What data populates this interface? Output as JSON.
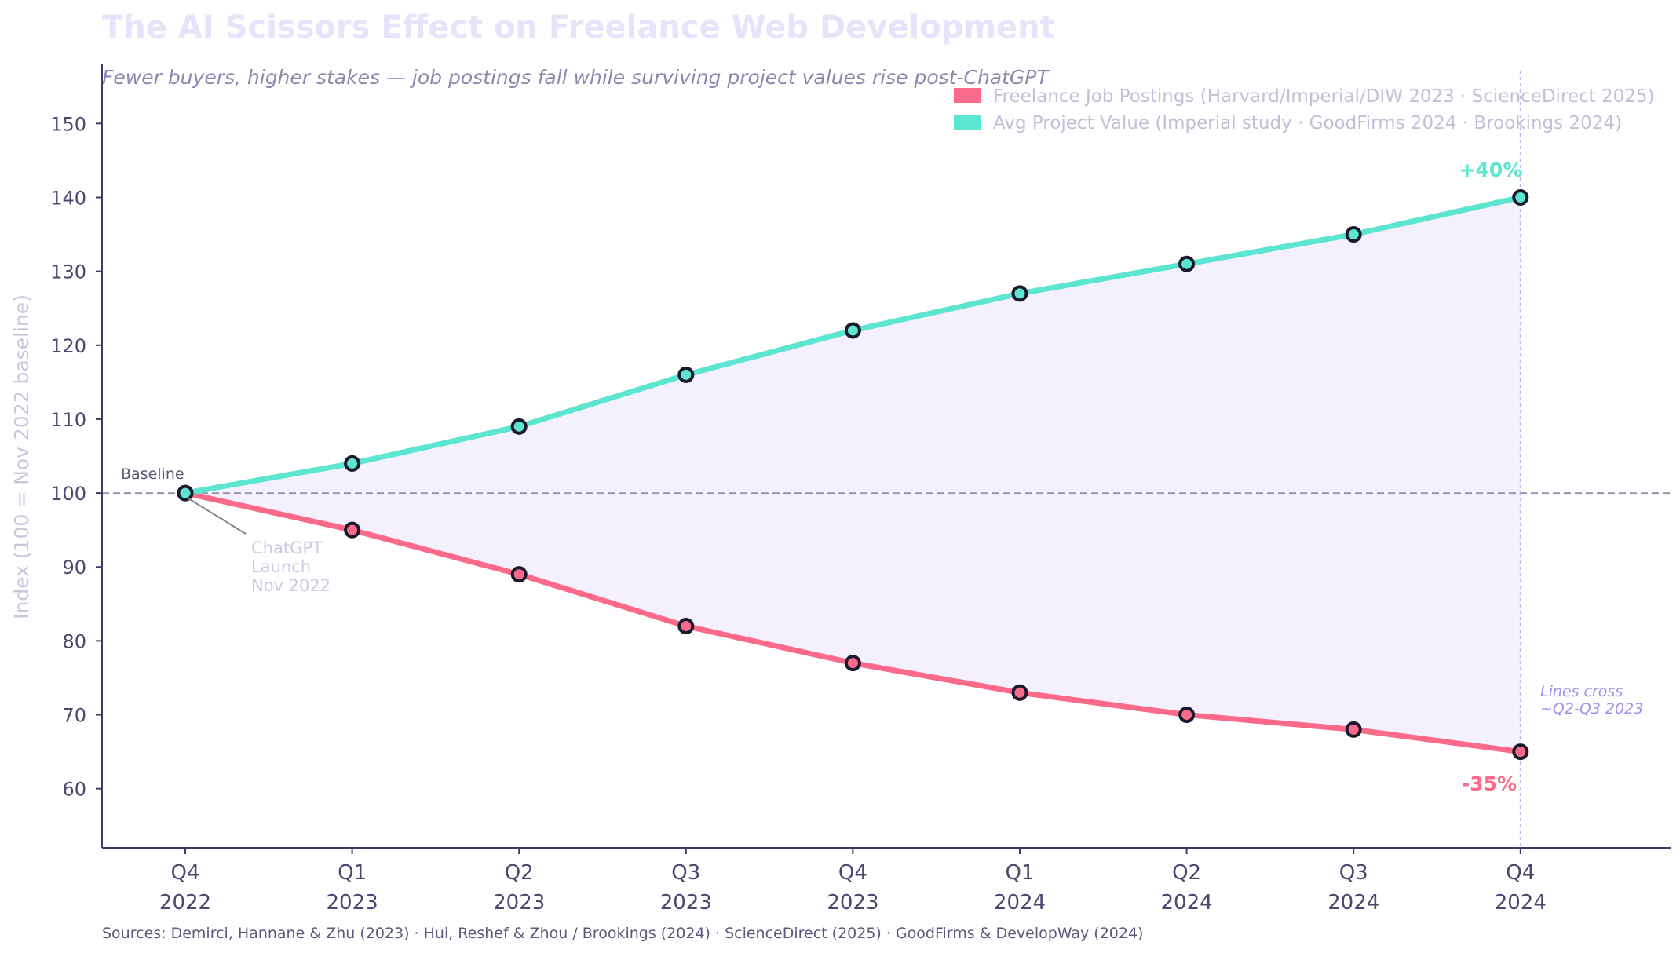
{
  "title": "The AI Scissors Effect on Freelance Web Development",
  "subtitle": "Fewer buyers, higher stakes — job postings fall while surviving project values rise post-ChatGPT",
  "source": "Sources: Demirci, Hannane & Zhu (2023) · Hui, Reshef & Zhou / Brookings (2024) · ScienceDirect (2025) · GoodFirms & DevelopWay (2024)",
  "colors": {
    "postings": "#fb6a8a",
    "project_value": "#5ce6d0",
    "fill": "#f4f0fe",
    "marker_edge": "#1a1a2e",
    "axis": "#3d3b66",
    "cross_line": "#c1b3f3"
  },
  "annotations": {
    "baseline": "Baseline",
    "chatgpt": [
      "ChatGPT",
      "Launch",
      "Nov 2022"
    ],
    "cross": [
      "Lines cross",
      "~Q2-Q3 2023"
    ],
    "project_end": "+40%",
    "postings_end": "-35%"
  },
  "chart_data": {
    "type": "line",
    "title": "The AI Scissors Effect on Freelance Web Development",
    "subtitle": "Fewer buyers, higher stakes — job postings fall while surviving project values rise post-ChatGPT",
    "xlabel": "",
    "ylabel": "Index  (100 = Nov 2022 baseline)",
    "categories": [
      [
        "Q4",
        "2022"
      ],
      [
        "Q1",
        "2023"
      ],
      [
        "Q2",
        "2023"
      ],
      [
        "Q3",
        "2023"
      ],
      [
        "Q4",
        "2023"
      ],
      [
        "Q1",
        "2024"
      ],
      [
        "Q2",
        "2024"
      ],
      [
        "Q3",
        "2024"
      ],
      [
        "Q4",
        "2024"
      ]
    ],
    "ylim": [
      52,
      158
    ],
    "yticks": [
      60,
      70,
      80,
      90,
      100,
      110,
      120,
      130,
      140,
      150
    ],
    "baseline": 100,
    "grid": false,
    "legend_position": "top-right",
    "series": [
      {
        "name": "Freelance Job Postings  (Harvard/Imperial/DIW 2023 · ScienceDirect 2025)",
        "color": "#fb6a8a",
        "values": [
          100,
          95,
          89,
          82,
          77,
          73,
          70,
          68,
          65
        ]
      },
      {
        "name": "Avg Project Value  (Imperial study · GoodFirms 2024 · Brookings 2024)",
        "color": "#5ce6d0",
        "values": [
          100,
          104,
          109,
          116,
          122,
          127,
          131,
          135,
          140
        ]
      }
    ]
  }
}
